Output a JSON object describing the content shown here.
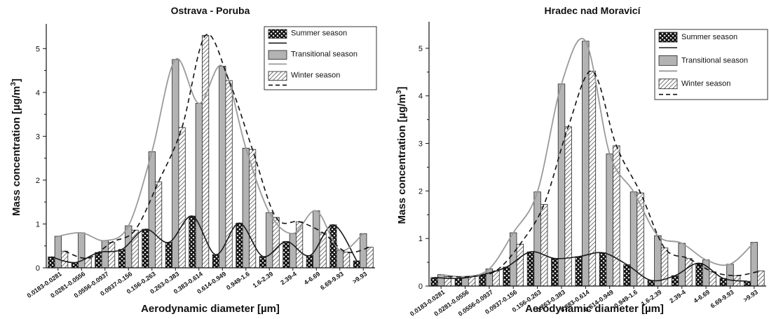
{
  "colors": {
    "summer_fill": "#1a1a1a",
    "transitional_fill": "#b3b3b3",
    "winter_fill": "#ffffff",
    "summer_line": "#1a1a1a",
    "transitional_line": "#9a9a9a",
    "winter_line": "#111111"
  },
  "chart_data": [
    {
      "type": "bar",
      "title": "Ostrava - Poruba",
      "xlabel": "Aerodynamic diameter [µm]",
      "ylabel_main": "Mass concentration [µg/m",
      "ylabel_sup": "3",
      "ylabel_end": "]",
      "ylim": [
        0,
        5.5
      ],
      "yticks": [
        "0",
        "1",
        "2",
        "3",
        "4",
        "5"
      ],
      "legend_position": "top-right",
      "categories": [
        "0.0183-0.0281",
        "0.0281-0.0556",
        "0.0556-0.0937",
        "0.0937-0.156",
        "0.156-0.263",
        "0.263-0.383",
        "0.383-0.614",
        "0.614-0.949",
        "0.949-1.6",
        "1.6-2.39",
        "2.39-4",
        "4-6.69",
        "6.69-9.93",
        ">9.93"
      ],
      "series": [
        {
          "name": "Summer season",
          "pattern": "hatch-cross",
          "line": "solid-dark",
          "values": [
            0.25,
            0.12,
            0.35,
            0.42,
            0.88,
            0.58,
            1.18,
            0.3,
            1.02,
            0.26,
            0.6,
            0.28,
            0.98,
            0.16
          ]
        },
        {
          "name": "Transitional season",
          "pattern": "gray",
          "line": "solid-gray",
          "values": [
            0.72,
            0.8,
            0.62,
            0.96,
            2.65,
            4.75,
            3.75,
            4.6,
            2.73,
            1.26,
            0.78,
            1.3,
            0.4,
            0.78
          ]
        },
        {
          "name": "Winter season",
          "pattern": "hatch-diagonal",
          "line": "dashed",
          "values": [
            0.38,
            0.22,
            0.58,
            0.86,
            1.96,
            3.2,
            5.3,
            4.27,
            2.7,
            1.15,
            1.05,
            0.8,
            0.36,
            0.47
          ]
        }
      ]
    },
    {
      "type": "bar",
      "title": "Hradec nad Moravicí",
      "xlabel": "Aerodynamic diameter [µm]",
      "ylabel_main": "Mass concentration [µg/m",
      "ylabel_sup": "3",
      "ylabel_end": "]",
      "ylim": [
        0,
        5.5
      ],
      "yticks": [
        "0",
        "1",
        "2",
        "3",
        "4",
        "5"
      ],
      "legend_position": "top-right",
      "categories": [
        "0.0183-0.0281",
        "0.0281-0.0556",
        "0.0556-0.0937",
        "0.0937-0.156",
        "0.156-0.263",
        "0.263-0.383",
        "0.383-0.614",
        "0.614-0.949",
        "0.949-1.6",
        "1.6-2.39",
        "2.39-4",
        "4-6.69",
        "6.69-9.93",
        ">9.93"
      ],
      "series": [
        {
          "name": "Summer season",
          "pattern": "hatch-cross",
          "line": "solid-dark",
          "values": [
            0.18,
            0.16,
            0.24,
            0.4,
            0.72,
            0.58,
            0.62,
            0.7,
            0.45,
            0.12,
            0.22,
            0.48,
            0.16,
            0.1
          ]
        },
        {
          "name": "Transitional season",
          "pattern": "gray",
          "line": "solid-gray",
          "values": [
            0.24,
            0.2,
            0.36,
            1.12,
            1.98,
            4.25,
            5.15,
            2.78,
            1.98,
            1.06,
            0.9,
            0.55,
            0.46,
            0.92
          ]
        },
        {
          "name": "Winter season",
          "pattern": "hatch-diagonal",
          "line": "dashed",
          "values": [
            0.2,
            0.2,
            0.32,
            0.88,
            1.72,
            3.35,
            4.52,
            2.95,
            1.96,
            0.8,
            0.58,
            0.3,
            0.22,
            0.32
          ]
        }
      ]
    }
  ]
}
